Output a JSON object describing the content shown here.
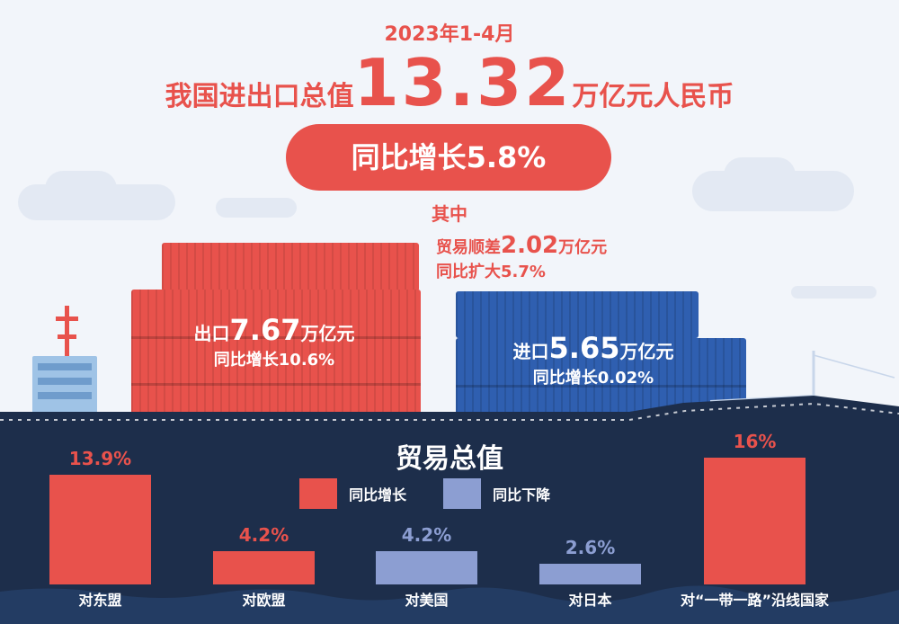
{
  "header": {
    "period": "2023年1-4月",
    "prefix": "我国进出口总值",
    "total_value": "13.32",
    "unit": "万亿元人民币",
    "growth_pill": "同比增长5.8%",
    "among": "其中"
  },
  "surplus": {
    "line1_prefix": "贸易顺差",
    "line1_value": "2.02",
    "line1_unit": "万亿元",
    "line2": "同比扩大5.7%"
  },
  "export": {
    "prefix": "出口",
    "value": "7.67",
    "unit": "万亿元",
    "growth": "同比增长10.6%"
  },
  "import": {
    "prefix": "进口",
    "value": "5.65",
    "unit": "万亿元",
    "growth": "同比增长0.02%"
  },
  "trade_panel": {
    "title": "贸易总值",
    "legend": [
      {
        "label": "同比增长",
        "color": "#e8524c"
      },
      {
        "label": "同比下降",
        "color": "#8c9ed2"
      }
    ]
  },
  "chart_data": {
    "type": "bar",
    "title": "贸易总值",
    "categories": [
      "对东盟",
      "对欧盟",
      "对美国",
      "对日本",
      "对“一带一路”沿线国家"
    ],
    "value_labels": [
      "13.9%",
      "4.2%",
      "4.2%",
      "2.6%",
      "16%"
    ],
    "values": [
      13.9,
      4.2,
      -4.2,
      -2.6,
      16
    ],
    "series": [
      {
        "name": "同比增长",
        "color": "#e8524c"
      },
      {
        "name": "同比下降",
        "color": "#8c9ed2"
      }
    ]
  }
}
